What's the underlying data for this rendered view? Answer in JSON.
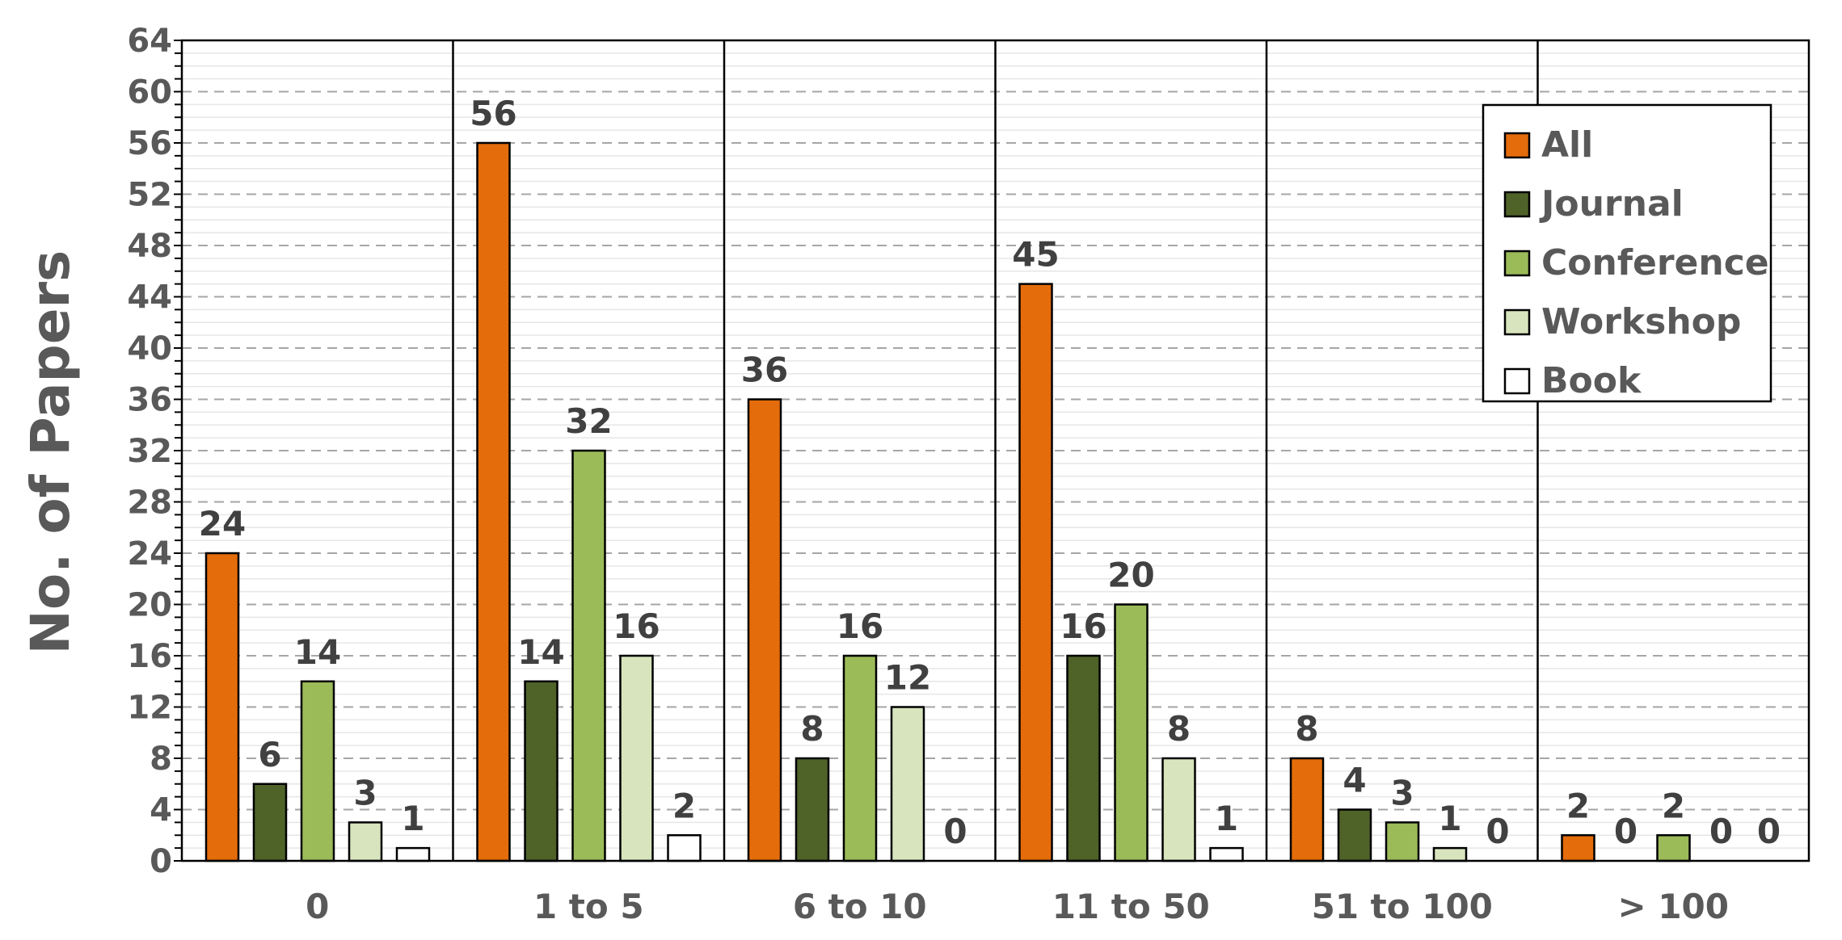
{
  "chart_data": {
    "type": "bar",
    "title": "",
    "xlabel": "",
    "ylabel": "No. of Papers",
    "ylim": [
      0,
      64
    ],
    "yticks": [
      0,
      4,
      8,
      12,
      16,
      20,
      24,
      28,
      32,
      36,
      40,
      44,
      48,
      52,
      56,
      60,
      64
    ],
    "grid": "horizontal dashed",
    "legend_position": "top-right",
    "categories": [
      "0",
      "1 to 5",
      "6 to 10",
      "11 to 50",
      "51 to 100",
      "> 100"
    ],
    "series": [
      {
        "name": "All",
        "color": "#E46C0A",
        "values": [
          24,
          56,
          36,
          45,
          8,
          2
        ]
      },
      {
        "name": "Journal",
        "color": "#4F6228",
        "values": [
          6,
          14,
          8,
          16,
          4,
          0
        ]
      },
      {
        "name": "Conference",
        "color": "#9BBB59",
        "values": [
          14,
          32,
          16,
          20,
          3,
          2
        ]
      },
      {
        "name": "Workshop",
        "color": "#D7E4BD",
        "values": [
          3,
          16,
          12,
          8,
          1,
          0
        ]
      },
      {
        "name": "Book",
        "color": "#FFFFFF",
        "values": [
          1,
          2,
          0,
          1,
          0,
          0
        ]
      }
    ]
  }
}
